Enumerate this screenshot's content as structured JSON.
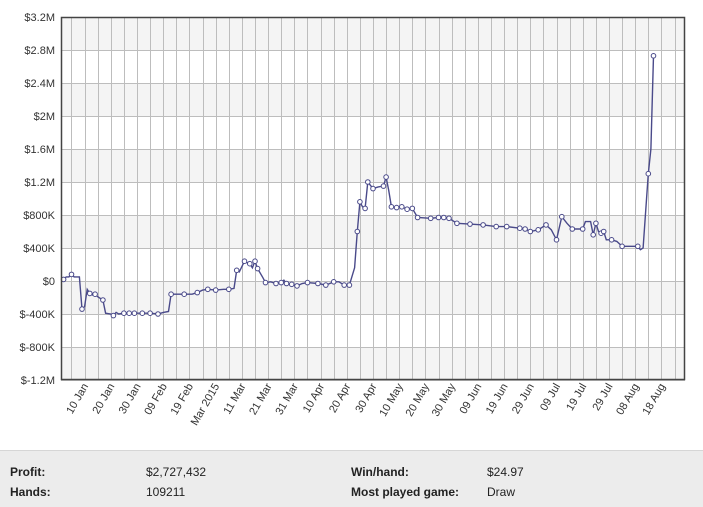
{
  "stats": {
    "profit_label": "Profit:",
    "profit_value": "$2,727,432",
    "hands_label": "Hands:",
    "hands_value": "109211",
    "winhand_label": "Win/hand:",
    "winhand_value": "$24.97",
    "game_label": "Most played game:",
    "game_value": "Draw"
  },
  "chart_data": {
    "type": "line",
    "title": "",
    "xlabel": "",
    "ylabel": "",
    "x_range": [
      "2015-01-01",
      "2015-08-27"
    ],
    "ylim": [
      -1200000,
      3200000
    ],
    "grid": true,
    "legend": "none",
    "line_color": "#4a4a8a",
    "point_color": "#ffffff",
    "y_ticks": [
      {
        "value": -1200000,
        "label": "$-1.2M"
      },
      {
        "value": -800000,
        "label": "$-800K"
      },
      {
        "value": -400000,
        "label": "$-400K"
      },
      {
        "value": 0,
        "label": "$0"
      },
      {
        "value": 400000,
        "label": "$400K"
      },
      {
        "value": 800000,
        "label": "$800K"
      },
      {
        "value": 1200000,
        "label": "$1.2M"
      },
      {
        "value": 1600000,
        "label": "$1.6M"
      },
      {
        "value": 2000000,
        "label": "$2M"
      },
      {
        "value": 2400000,
        "label": "$2.4M"
      },
      {
        "value": 2800000,
        "label": "$2.8M"
      },
      {
        "value": 3200000,
        "label": "$3.2M"
      }
    ],
    "x_ticks": [
      {
        "date": "2015-01-10",
        "label": "10 Jan"
      },
      {
        "date": "2015-01-20",
        "label": "20 Jan"
      },
      {
        "date": "2015-01-30",
        "label": "30 Jan"
      },
      {
        "date": "2015-02-09",
        "label": "09 Feb"
      },
      {
        "date": "2015-02-19",
        "label": "19 Feb"
      },
      {
        "date": "2015-03-01",
        "label": "Mar 2015"
      },
      {
        "date": "2015-03-11",
        "label": "11 Mar"
      },
      {
        "date": "2015-03-21",
        "label": "21 Mar"
      },
      {
        "date": "2015-03-31",
        "label": "31 Mar"
      },
      {
        "date": "2015-04-10",
        "label": "10 Apr"
      },
      {
        "date": "2015-04-20",
        "label": "20 Apr"
      },
      {
        "date": "2015-04-30",
        "label": "30 Apr"
      },
      {
        "date": "2015-05-10",
        "label": "10 May"
      },
      {
        "date": "2015-05-20",
        "label": "20 May"
      },
      {
        "date": "2015-05-30",
        "label": "30 May"
      },
      {
        "date": "2015-06-09",
        "label": "09 Jun"
      },
      {
        "date": "2015-06-19",
        "label": "19 Jun"
      },
      {
        "date": "2015-06-29",
        "label": "29 Jun"
      },
      {
        "date": "2015-07-09",
        "label": "09 Jul"
      },
      {
        "date": "2015-07-19",
        "label": "19 Jul"
      },
      {
        "date": "2015-07-29",
        "label": "29 Jul"
      },
      {
        "date": "2015-08-08",
        "label": "08 Aug"
      },
      {
        "date": "2015-08-18",
        "label": "18 Aug"
      }
    ],
    "series": [
      {
        "points": [
          {
            "x": "2015-01-02",
            "y": 20000,
            "marker": true
          },
          {
            "x": "2015-01-03",
            "y": 50000,
            "marker": false
          },
          {
            "x": "2015-01-04",
            "y": 50000,
            "marker": false
          },
          {
            "x": "2015-01-05",
            "y": 80000,
            "marker": true
          },
          {
            "x": "2015-01-06",
            "y": 50000,
            "marker": false
          },
          {
            "x": "2015-01-08",
            "y": 50000,
            "marker": false
          },
          {
            "x": "2015-01-09",
            "y": -340000,
            "marker": true
          },
          {
            "x": "2015-01-10",
            "y": -310000,
            "marker": false
          },
          {
            "x": "2015-01-11",
            "y": -100000,
            "marker": false
          },
          {
            "x": "2015-01-12",
            "y": -150000,
            "marker": true
          },
          {
            "x": "2015-01-13",
            "y": -170000,
            "marker": false
          },
          {
            "x": "2015-01-14",
            "y": -160000,
            "marker": true
          },
          {
            "x": "2015-01-15",
            "y": -190000,
            "marker": false
          },
          {
            "x": "2015-01-17",
            "y": -230000,
            "marker": true
          },
          {
            "x": "2015-01-18",
            "y": -390000,
            "marker": false
          },
          {
            "x": "2015-01-20",
            "y": -400000,
            "marker": false
          },
          {
            "x": "2015-01-21",
            "y": -420000,
            "marker": true
          },
          {
            "x": "2015-01-22",
            "y": -380000,
            "marker": false
          },
          {
            "x": "2015-01-23",
            "y": -400000,
            "marker": false
          },
          {
            "x": "2015-01-25",
            "y": -390000,
            "marker": true
          },
          {
            "x": "2015-01-27",
            "y": -390000,
            "marker": true
          },
          {
            "x": "2015-01-29",
            "y": -390000,
            "marker": true
          },
          {
            "x": "2015-02-01",
            "y": -390000,
            "marker": true
          },
          {
            "x": "2015-02-04",
            "y": -390000,
            "marker": true
          },
          {
            "x": "2015-02-07",
            "y": -400000,
            "marker": true
          },
          {
            "x": "2015-02-09",
            "y": -380000,
            "marker": false
          },
          {
            "x": "2015-02-11",
            "y": -370000,
            "marker": false
          },
          {
            "x": "2015-02-12",
            "y": -160000,
            "marker": true
          },
          {
            "x": "2015-02-15",
            "y": -160000,
            "marker": false
          },
          {
            "x": "2015-02-17",
            "y": -160000,
            "marker": true
          },
          {
            "x": "2015-02-20",
            "y": -160000,
            "marker": false
          },
          {
            "x": "2015-02-22",
            "y": -140000,
            "marker": true
          },
          {
            "x": "2015-02-24",
            "y": -110000,
            "marker": false
          },
          {
            "x": "2015-02-26",
            "y": -100000,
            "marker": true
          },
          {
            "x": "2015-03-01",
            "y": -110000,
            "marker": true
          },
          {
            "x": "2015-03-04",
            "y": -100000,
            "marker": false
          },
          {
            "x": "2015-03-06",
            "y": -100000,
            "marker": true
          },
          {
            "x": "2015-03-08",
            "y": -90000,
            "marker": false
          },
          {
            "x": "2015-03-09",
            "y": 130000,
            "marker": true
          },
          {
            "x": "2015-03-10",
            "y": 110000,
            "marker": false
          },
          {
            "x": "2015-03-12",
            "y": 240000,
            "marker": true
          },
          {
            "x": "2015-03-13",
            "y": 220000,
            "marker": false
          },
          {
            "x": "2015-03-14",
            "y": 210000,
            "marker": true
          },
          {
            "x": "2015-03-15",
            "y": 160000,
            "marker": false
          },
          {
            "x": "2015-03-16",
            "y": 240000,
            "marker": true
          },
          {
            "x": "2015-03-17",
            "y": 150000,
            "marker": true
          },
          {
            "x": "2015-03-19",
            "y": 40000,
            "marker": false
          },
          {
            "x": "2015-03-20",
            "y": -20000,
            "marker": true
          },
          {
            "x": "2015-03-22",
            "y": -10000,
            "marker": false
          },
          {
            "x": "2015-03-24",
            "y": -30000,
            "marker": true
          },
          {
            "x": "2015-03-26",
            "y": -20000,
            "marker": true
          },
          {
            "x": "2015-03-27",
            "y": 10000,
            "marker": false
          },
          {
            "x": "2015-03-28",
            "y": -30000,
            "marker": true
          },
          {
            "x": "2015-03-30",
            "y": -40000,
            "marker": true
          },
          {
            "x": "2015-04-01",
            "y": -60000,
            "marker": true
          },
          {
            "x": "2015-04-03",
            "y": -30000,
            "marker": false
          },
          {
            "x": "2015-04-05",
            "y": -20000,
            "marker": true
          },
          {
            "x": "2015-04-09",
            "y": -30000,
            "marker": true
          },
          {
            "x": "2015-04-12",
            "y": -50000,
            "marker": true
          },
          {
            "x": "2015-04-15",
            "y": -10000,
            "marker": true
          },
          {
            "x": "2015-04-17",
            "y": -10000,
            "marker": false
          },
          {
            "x": "2015-04-19",
            "y": -50000,
            "marker": true
          },
          {
            "x": "2015-04-21",
            "y": -50000,
            "marker": true
          },
          {
            "x": "2015-04-23",
            "y": 160000,
            "marker": false
          },
          {
            "x": "2015-04-24",
            "y": 600000,
            "marker": true
          },
          {
            "x": "2015-04-25",
            "y": 960000,
            "marker": true
          },
          {
            "x": "2015-04-26",
            "y": 900000,
            "marker": false
          },
          {
            "x": "2015-04-27",
            "y": 880000,
            "marker": true
          },
          {
            "x": "2015-04-28",
            "y": 1200000,
            "marker": true
          },
          {
            "x": "2015-04-29",
            "y": 1160000,
            "marker": false
          },
          {
            "x": "2015-04-30",
            "y": 1120000,
            "marker": true
          },
          {
            "x": "2015-05-02",
            "y": 1140000,
            "marker": false
          },
          {
            "x": "2015-05-04",
            "y": 1150000,
            "marker": true
          },
          {
            "x": "2015-05-05",
            "y": 1260000,
            "marker": true
          },
          {
            "x": "2015-05-06",
            "y": 1100000,
            "marker": false
          },
          {
            "x": "2015-05-07",
            "y": 900000,
            "marker": true
          },
          {
            "x": "2015-05-09",
            "y": 890000,
            "marker": true
          },
          {
            "x": "2015-05-11",
            "y": 900000,
            "marker": true
          },
          {
            "x": "2015-05-13",
            "y": 870000,
            "marker": true
          },
          {
            "x": "2015-05-15",
            "y": 880000,
            "marker": true
          },
          {
            "x": "2015-05-17",
            "y": 770000,
            "marker": true
          },
          {
            "x": "2015-05-22",
            "y": 760000,
            "marker": true
          },
          {
            "x": "2015-05-25",
            "y": 770000,
            "marker": true
          },
          {
            "x": "2015-05-27",
            "y": 770000,
            "marker": true
          },
          {
            "x": "2015-05-29",
            "y": 760000,
            "marker": true
          },
          {
            "x": "2015-06-01",
            "y": 700000,
            "marker": true
          },
          {
            "x": "2015-06-06",
            "y": 690000,
            "marker": true
          },
          {
            "x": "2015-06-11",
            "y": 680000,
            "marker": true
          },
          {
            "x": "2015-06-16",
            "y": 660000,
            "marker": true
          },
          {
            "x": "2015-06-20",
            "y": 660000,
            "marker": true
          },
          {
            "x": "2015-06-25",
            "y": 640000,
            "marker": true
          },
          {
            "x": "2015-06-27",
            "y": 630000,
            "marker": true
          },
          {
            "x": "2015-06-29",
            "y": 600000,
            "marker": true
          },
          {
            "x": "2015-07-02",
            "y": 620000,
            "marker": true
          },
          {
            "x": "2015-07-05",
            "y": 680000,
            "marker": true
          },
          {
            "x": "2015-07-07",
            "y": 620000,
            "marker": false
          },
          {
            "x": "2015-07-09",
            "y": 500000,
            "marker": true
          },
          {
            "x": "2015-07-11",
            "y": 780000,
            "marker": true
          },
          {
            "x": "2015-07-13",
            "y": 700000,
            "marker": false
          },
          {
            "x": "2015-07-15",
            "y": 630000,
            "marker": true
          },
          {
            "x": "2015-07-19",
            "y": 630000,
            "marker": true
          },
          {
            "x": "2015-07-20",
            "y": 720000,
            "marker": false
          },
          {
            "x": "2015-07-22",
            "y": 720000,
            "marker": false
          },
          {
            "x": "2015-07-23",
            "y": 560000,
            "marker": true
          },
          {
            "x": "2015-07-24",
            "y": 700000,
            "marker": true
          },
          {
            "x": "2015-07-25",
            "y": 600000,
            "marker": false
          },
          {
            "x": "2015-07-26",
            "y": 580000,
            "marker": true
          },
          {
            "x": "2015-07-27",
            "y": 600000,
            "marker": true
          },
          {
            "x": "2015-07-28",
            "y": 500000,
            "marker": false
          },
          {
            "x": "2015-07-30",
            "y": 500000,
            "marker": true
          },
          {
            "x": "2015-08-01",
            "y": 480000,
            "marker": false
          },
          {
            "x": "2015-08-03",
            "y": 420000,
            "marker": true
          },
          {
            "x": "2015-08-07",
            "y": 420000,
            "marker": false
          },
          {
            "x": "2015-08-09",
            "y": 420000,
            "marker": true
          },
          {
            "x": "2015-08-10",
            "y": 380000,
            "marker": false
          },
          {
            "x": "2015-08-11",
            "y": 400000,
            "marker": false
          },
          {
            "x": "2015-08-13",
            "y": 1300000,
            "marker": true
          },
          {
            "x": "2015-08-14",
            "y": 1600000,
            "marker": false
          },
          {
            "x": "2015-08-15",
            "y": 2730000,
            "marker": true
          }
        ]
      }
    ]
  }
}
